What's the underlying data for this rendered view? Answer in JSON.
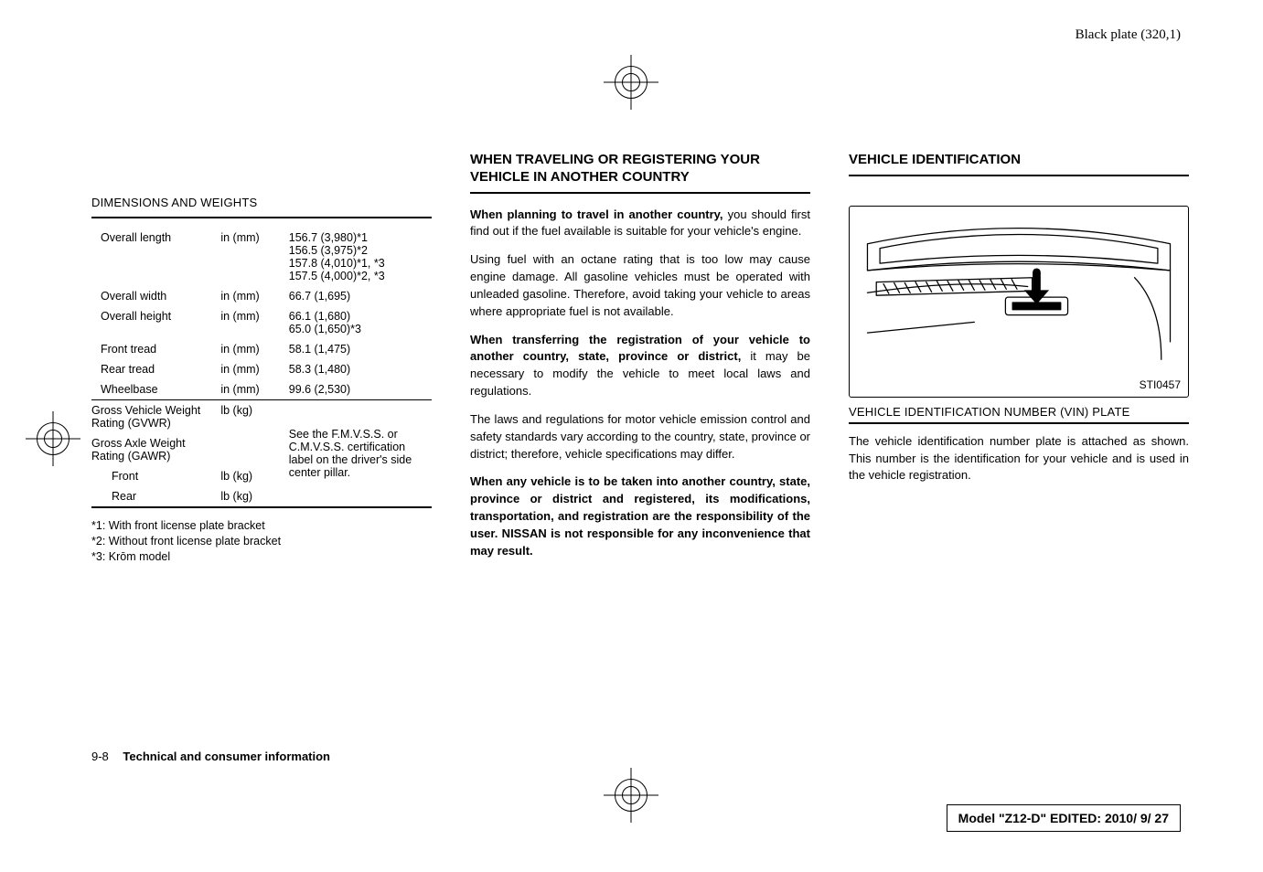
{
  "slug": "Black plate (320,1)",
  "col1": {
    "heading": "DIMENSIONS AND WEIGHTS",
    "rows": [
      {
        "k": "Overall length",
        "u": "in (mm)",
        "v": "156.7 (3,980)*1\n156.5 (3,975)*2\n157.8 (4,010)*1, *3\n157.5 (4,000)*2, *3"
      },
      {
        "k": "Overall width",
        "u": "in (mm)",
        "v": "66.7 (1,695)"
      },
      {
        "k": "Overall height",
        "u": "in (mm)",
        "v": "66.1 (1,680)\n65.0 (1,650)*3"
      },
      {
        "k": "Front tread",
        "u": "in (mm)",
        "v": "58.1 (1,475)"
      },
      {
        "k": "Rear tread",
        "u": "in (mm)",
        "v": "58.3 (1,480)"
      },
      {
        "k": "Wheelbase",
        "u": "in (mm)",
        "v": "99.6 (2,530)"
      }
    ],
    "rows2": [
      {
        "k": "Gross Vehicle Weight Rating (GVWR)",
        "u": "lb (kg)",
        "v": ""
      },
      {
        "k": "Gross Axle Weight Rating (GAWR)",
        "u": "",
        "v": ""
      },
      {
        "k": "Front",
        "u": "lb (kg)",
        "v": "",
        "indent": true
      },
      {
        "k": "Rear",
        "u": "lb (kg)",
        "v": "",
        "indent": true
      }
    ],
    "note_block": "See the F.M.V.S.S. or C.M.V.S.S. certification label on the driver's side center pillar.",
    "footnotes": [
      "*1: With front license plate bracket",
      "*2: Without front license plate bracket",
      "*3: Krōm model"
    ]
  },
  "col2": {
    "heading": "WHEN TRAVELING OR REGISTERING YOUR VEHICLE IN ANOTHER COUNTRY",
    "paras": [
      "<b>When planning to travel in another country,</b> you should first find out if the fuel available is suitable for your vehicle's engine.",
      "Using fuel with an octane rating that is too low may cause engine damage. All gasoline vehicles must be operated with unleaded gasoline. Therefore, avoid taking your vehicle to areas where appropriate fuel is not available.",
      "<b>When transferring the registration of your vehicle to another country, state, province or district,</b> it may be necessary to modify the vehicle to meet local laws and regulations.",
      "The laws and regulations for motor vehicle emission control and safety standards vary according to the country, state, province or district; therefore, vehicle specifications may differ.",
      "<b>When any vehicle is to be taken into another country, state, province or district and registered, its modifications, transportation, and registration are the responsibility of the user. NISSAN is not responsible for any inconvenience that may result.</b>"
    ]
  },
  "col3": {
    "heading": "VEHICLE IDENTIFICATION",
    "illus_label": "STI0457",
    "sub_heading": "VEHICLE IDENTIFICATION NUMBER (VIN) PLATE",
    "para": "The vehicle identification number plate is attached as shown. This number is the identification for your vehicle and is used in the vehicle registration."
  },
  "footer": {
    "page": "9-8",
    "title": "Technical and consumer information"
  },
  "modelbar": "Model \"Z12-D\"  EDITED: 2010/ 9/ 27"
}
